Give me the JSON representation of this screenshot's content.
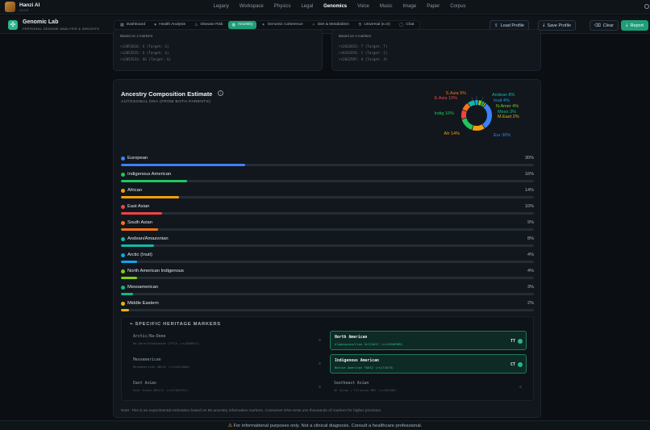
{
  "app": {
    "name": "Hanzi AI",
    "version": "v1.0.0"
  },
  "topnav": [
    "Legacy",
    "Workspace",
    "Physics",
    "Legal",
    "Genomics",
    "Voice",
    "Music",
    "Image",
    "Paper",
    "Corpus"
  ],
  "topnav_active": "Genomics",
  "lab": {
    "title": "Genomic Lab",
    "subtitle": "PERSONAL GENOME ANALYSIS & INSIGHTS"
  },
  "tabs": [
    {
      "label": "Dashboard",
      "icon": "▦"
    },
    {
      "label": "Health Analysis",
      "icon": "♥"
    },
    {
      "label": "Disease Risk",
      "icon": "⚠"
    },
    {
      "label": "Ancestry",
      "icon": "◍"
    },
    {
      "label": "Genomic Coherence",
      "icon": "✦"
    },
    {
      "label": "Diet & Metabolism",
      "icon": "✧"
    },
    {
      "label": "Universal (κ=0)",
      "icon": "⚗"
    },
    {
      "label": "Chat",
      "icon": "◯"
    }
  ],
  "active_tab": "Ancestry",
  "actions": {
    "load": "Load Profile",
    "save": "Save Profile",
    "clear": "Clear",
    "report": "Report"
  },
  "top_cards": [
    {
      "header": "Based on 4 markers",
      "lines": [
        "rs2853616: G (Target: G)",
        "rs2853515: G (Target: G)",
        "rs2853533: GG (Target: G)"
      ]
    },
    {
      "header": "Based on 4 markers",
      "lines": [
        "rs2032653: T (Target: T)",
        "rs9321976: C (Target: C)",
        "rs2032597: A (Target: A)"
      ]
    }
  ],
  "ancestry": {
    "title": "Ancestry Composition Estimate",
    "subtitle": "AUTOSOMAL DNA (FROM BOTH PARENTS)",
    "populations": [
      {
        "name": "European",
        "pct": 30,
        "label": "30%",
        "color": "#3b82f6"
      },
      {
        "name": "Indigenous American",
        "pct": 16,
        "label": "16%",
        "color": "#22c55e"
      },
      {
        "name": "African",
        "pct": 14,
        "label": "14%",
        "color": "#f59e0b"
      },
      {
        "name": "East Asian",
        "pct": 10,
        "label": "10%",
        "color": "#ef4444"
      },
      {
        "name": "South Asian",
        "pct": 9,
        "label": "9%",
        "color": "#f97316"
      },
      {
        "name": "Andean/Amazonian",
        "pct": 8,
        "label": "8%",
        "color": "#14b8a6"
      },
      {
        "name": "Arctic (Inuit)",
        "pct": 4,
        "label": "4%",
        "color": "#0ea5e9"
      },
      {
        "name": "North American Indigenous",
        "pct": 4,
        "label": "4%",
        "color": "#84cc16"
      },
      {
        "name": "Mesoamerican",
        "pct": 3,
        "label": "3%",
        "color": "#10b981"
      },
      {
        "name": "Middle Eastern",
        "pct": 2,
        "label": "2%",
        "color": "#eab308"
      }
    ],
    "donut_labels": [
      {
        "text": "S.Asia 9%",
        "color": "#f97316"
      },
      {
        "text": "E.Asia 10%",
        "color": "#ef4444"
      },
      {
        "text": "Andean 8%",
        "color": "#14b8a6"
      },
      {
        "text": "Inuit 4%",
        "color": "#0ea5e9"
      },
      {
        "text": "N.Amer 4%",
        "color": "#84cc16"
      },
      {
        "text": "Meso 3%",
        "color": "#10b981"
      },
      {
        "text": "M.East 2%",
        "color": "#eab308"
      },
      {
        "text": "Indig 16%",
        "color": "#22c55e"
      },
      {
        "text": "Afr 14%",
        "color": "#f59e0b"
      },
      {
        "text": "Eur 30%",
        "color": "#3b82f6"
      }
    ],
    "markers_title": "SPECIFIC HERITAGE MARKERS",
    "markers": [
      {
        "title": "Arctic/Na-Dene",
        "sub": "Na-Dene/Athabaskan CPT1A (rs1800022)",
        "genotype": "",
        "on": false
      },
      {
        "title": "North American",
        "sub": "Algonquian/Cree SLC24A17 (rs13640909)",
        "genotype": "TT",
        "on": true
      },
      {
        "title": "Mesoamerican",
        "sub": "Mesoamerican ABCA1 (rs12011000)",
        "genotype": "",
        "on": false
      },
      {
        "title": "Indigenous American",
        "sub": "Native American FADS2 (rs174570)",
        "genotype": "CT",
        "on": true
      },
      {
        "title": "East Asian",
        "sub": "East Asian ABCC11 (rs17822931)",
        "genotype": "",
        "on": false
      },
      {
        "title": "Southeast Asian",
        "sub": "SE Asian / Filipino MHC (rs184180)",
        "genotype": "",
        "on": false
      }
    ],
    "note": "Note: This is an experimental estimation based on 55 ancestry informative markers. Consumer DNA tests use thousands of markers for higher precision."
  },
  "footer": {
    "icon": "⚠",
    "text": "For informational purposes only. Not a clinical diagnosis. Consult a healthcare professional."
  }
}
